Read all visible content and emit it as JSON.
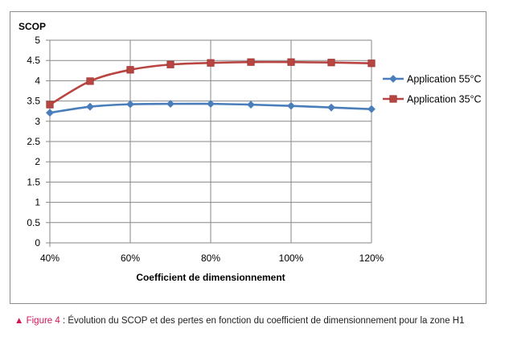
{
  "chart_data": {
    "type": "line",
    "title": "",
    "ylabel": "SCOP",
    "xlabel": "Coefficient de dimensionnement",
    "x": [
      40,
      50,
      60,
      70,
      80,
      90,
      100,
      110,
      120
    ],
    "xticks": [
      "40%",
      "60%",
      "80%",
      "100%",
      "120%"
    ],
    "xlim": [
      40,
      120
    ],
    "ylim": [
      0,
      5
    ],
    "yticks": [
      "0",
      "0.5",
      "1",
      "1.5",
      "2",
      "2.5",
      "3",
      "3.5",
      "4",
      "4.5",
      "5"
    ],
    "grid": true,
    "legend_position": "right",
    "series": [
      {
        "name": "Application 55°C",
        "color": "#4a7ebb",
        "marker": "diamond",
        "values": [
          3.21,
          3.36,
          3.42,
          3.43,
          3.43,
          3.41,
          3.38,
          3.34,
          3.3
        ]
      },
      {
        "name": "Application 35°C",
        "color": "#b84542",
        "marker": "square",
        "values": [
          3.41,
          3.99,
          4.27,
          4.4,
          4.44,
          4.46,
          4.46,
          4.45,
          4.43
        ]
      }
    ]
  },
  "caption": {
    "marker": "▲",
    "figure_label": "Figure 4",
    "separator": " : ",
    "text": "Évolution du SCOP et des pertes en fonction du coefficient de dimensionnement pour la zone H1"
  }
}
